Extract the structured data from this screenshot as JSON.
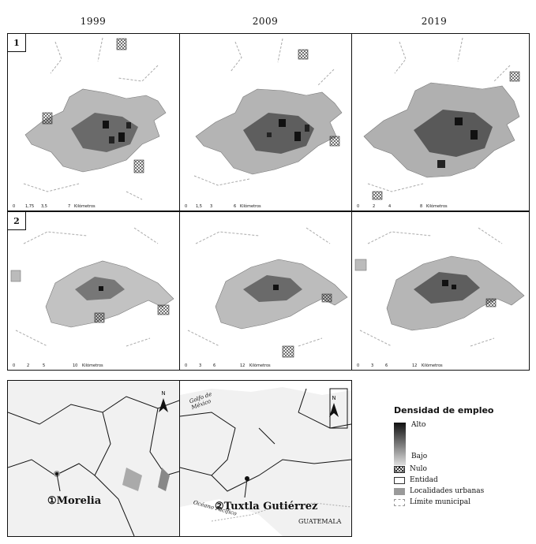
{
  "years": [
    "1999",
    "2009",
    "2019"
  ],
  "rows": [
    "1",
    "2"
  ],
  "scale": {
    "unit": "Kilómetros",
    "row1": [
      [
        "0",
        "1,75",
        "3,5",
        "7"
      ],
      [
        "0",
        "1,5",
        "3",
        "6"
      ],
      [
        "0",
        "2",
        "4",
        "8"
      ]
    ],
    "row2": [
      [
        "0",
        "2",
        "5",
        "10"
      ],
      [
        "0",
        "3",
        "6",
        "12"
      ],
      [
        "0",
        "3",
        "6",
        "12"
      ]
    ]
  },
  "locator": {
    "cities": [
      {
        "number": "①",
        "name": "Morelia"
      },
      {
        "number": "②",
        "name": "Tuxtla Gutiérrez"
      }
    ],
    "gulf_label": "Golfo de México",
    "ocean_label": "Océano Pacífico",
    "country_label": "GUATEMALA",
    "north_label": "N"
  },
  "legend": {
    "title": "Densidad de empleo",
    "high": "Alto",
    "low": "Bajo",
    "items": [
      "Nulo",
      "Entidad",
      "Localidades urbanas",
      "Límite municipal"
    ]
  },
  "colors": {
    "frame": "#111111",
    "high": "#111111",
    "low": "#dddddd",
    "urban_localities": "#9a9a9a",
    "municipal_boundary": "#aaaaaa"
  }
}
